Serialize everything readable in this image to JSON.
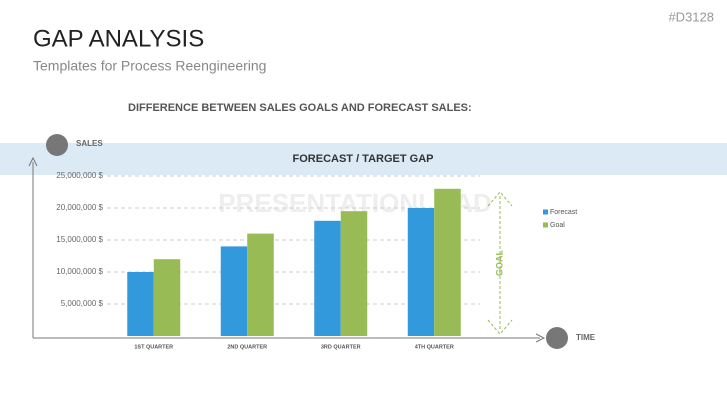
{
  "slide": {
    "code": "#D3128",
    "title": "GAP ANALYSIS",
    "subtitle": "Templates for Process Reengineering",
    "watermark": "PRESENTATIONLOAD"
  },
  "chart_data": {
    "type": "bar",
    "title": "DIFFERENCE BETWEEN SALES GOALS AND FORECAST SALES:",
    "subtitle": "FORECAST / TARGET GAP",
    "y_label": "SALES",
    "x_label": "TIME",
    "annotation": "GOAL",
    "categories": [
      "1ST QUARTER",
      "2ND QUARTER",
      "3RD QUARTER",
      "4TH QUARTER"
    ],
    "series": [
      {
        "name": "Forecast",
        "color": "#3399dd",
        "values": [
          10000000,
          14000000,
          18000000,
          20000000
        ]
      },
      {
        "name": "Goal",
        "color": "#99bb55",
        "values": [
          12000000,
          16000000,
          19500000,
          23000000
        ]
      }
    ],
    "ylim": [
      0,
      27500000
    ],
    "yticks": [
      {
        "value": 5000000,
        "label": "5,000,000 $"
      },
      {
        "value": 10000000,
        "label": "10,000,000 $"
      },
      {
        "value": 15000000,
        "label": "15,000,000 $"
      },
      {
        "value": 20000000,
        "label": "20,000,000 $"
      },
      {
        "value": 25000000,
        "label": "25,000,000 $"
      }
    ],
    "grid": true,
    "legend": "right"
  }
}
